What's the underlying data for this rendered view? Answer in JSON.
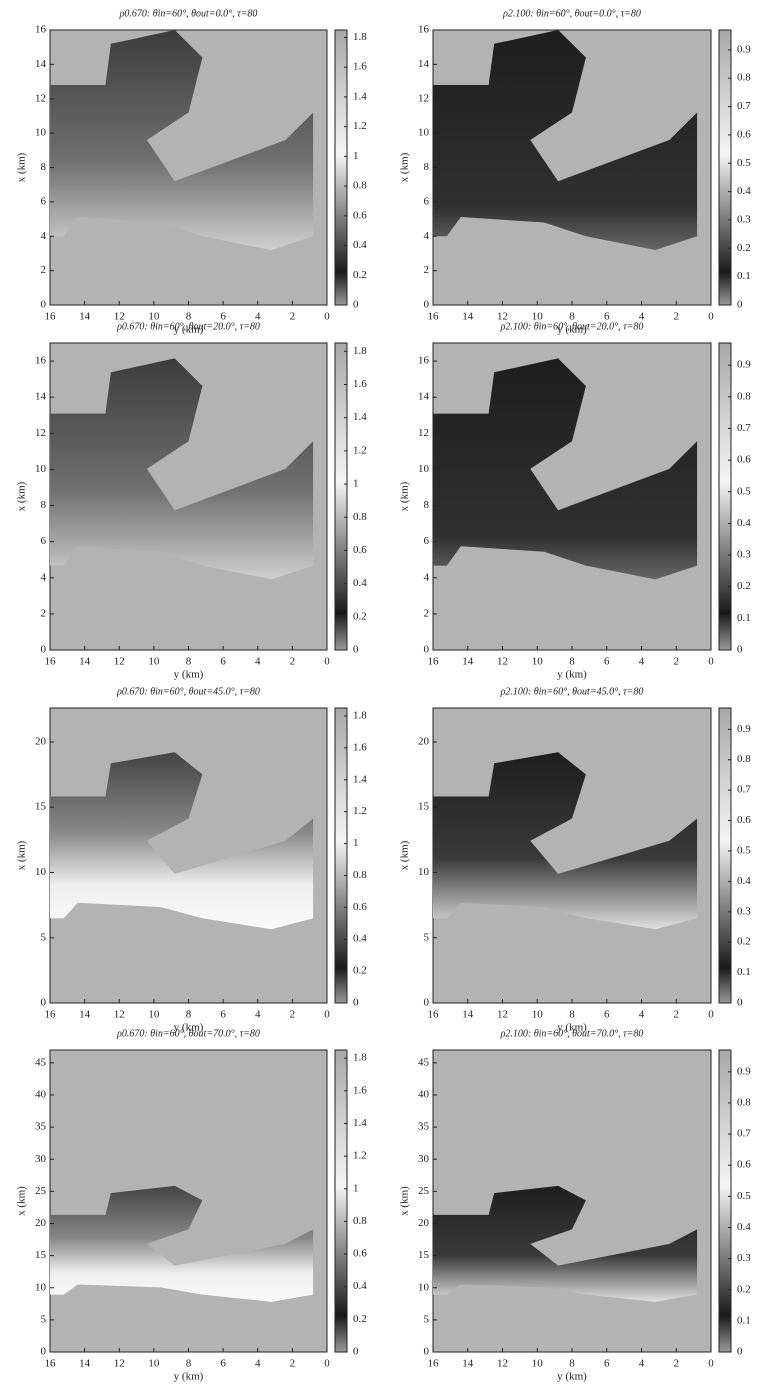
{
  "chart_data": [
    {
      "type": "heatmap",
      "title": "ρ0.670: θin=60°, θout=0.0°, τ=80",
      "xlabel": "y (km)",
      "ylabel": "x (km)",
      "xlim": [
        16,
        0
      ],
      "xticks": [
        16,
        14,
        12,
        10,
        8,
        6,
        4,
        2,
        0
      ],
      "ylim": [
        0,
        16
      ],
      "yticks": [
        0,
        2,
        4,
        6,
        8,
        10,
        12,
        14,
        16
      ],
      "clim": [
        0,
        1.85
      ],
      "cticks": [
        0,
        0.2,
        0.4,
        0.6,
        0.8,
        1,
        1.2,
        1.4,
        1.6,
        1.8
      ]
    },
    {
      "type": "heatmap",
      "title": "ρ2.100: θin=60°, θout=0.0°, τ=80",
      "xlabel": "y (km)",
      "ylabel": "x (km)",
      "xlim": [
        16,
        0
      ],
      "xticks": [
        16,
        14,
        12,
        10,
        8,
        6,
        4,
        2,
        0
      ],
      "ylim": [
        0,
        16
      ],
      "yticks": [
        0,
        2,
        4,
        6,
        8,
        10,
        12,
        14,
        16
      ],
      "clim": [
        0,
        0.97
      ],
      "cticks": [
        0,
        0.1,
        0.2,
        0.3,
        0.4,
        0.5,
        0.6,
        0.7,
        0.8,
        0.9
      ]
    },
    {
      "type": "heatmap",
      "title": "ρ0.670: θin=60°, θout=20.0°, τ=80",
      "xlabel": "y (km)",
      "ylabel": "x (km)",
      "xlim": [
        16,
        0
      ],
      "xticks": [
        16,
        14,
        12,
        10,
        8,
        6,
        4,
        2,
        0
      ],
      "ylim": [
        0,
        17
      ],
      "yticks": [
        0,
        2,
        4,
        6,
        8,
        10,
        12,
        14,
        16
      ],
      "clim": [
        0,
        1.85
      ],
      "cticks": [
        0,
        0.2,
        0.4,
        0.6,
        0.8,
        1,
        1.2,
        1.4,
        1.6,
        1.8
      ]
    },
    {
      "type": "heatmap",
      "title": "ρ2.100: θin=60°, θout=20.0°, τ=80",
      "xlabel": "y (km)",
      "ylabel": "x (km)",
      "xlim": [
        16,
        0
      ],
      "xticks": [
        16,
        14,
        12,
        10,
        8,
        6,
        4,
        2,
        0
      ],
      "ylim": [
        0,
        17
      ],
      "yticks": [
        0,
        2,
        4,
        6,
        8,
        10,
        12,
        14,
        16
      ],
      "clim": [
        0,
        0.97
      ],
      "cticks": [
        0,
        0.1,
        0.2,
        0.3,
        0.4,
        0.5,
        0.6,
        0.7,
        0.8,
        0.9
      ]
    },
    {
      "type": "heatmap",
      "title": "ρ0.670: θin=60°, θout=45.0°, τ=80",
      "xlabel": "y (km)",
      "ylabel": "x (km)",
      "xlim": [
        16,
        0
      ],
      "xticks": [
        16,
        14,
        12,
        10,
        8,
        6,
        4,
        2,
        0
      ],
      "ylim": [
        0,
        22.6
      ],
      "yticks": [
        0,
        5,
        10,
        15,
        20
      ],
      "clim": [
        0,
        1.85
      ],
      "cticks": [
        0,
        0.2,
        0.4,
        0.6,
        0.8,
        1,
        1.2,
        1.4,
        1.6,
        1.8
      ]
    },
    {
      "type": "heatmap",
      "title": "ρ2.100: θin=60°, θout=45.0°, τ=80",
      "xlabel": "y (km)",
      "ylabel": "x (km)",
      "xlim": [
        16,
        0
      ],
      "xticks": [
        16,
        14,
        12,
        10,
        8,
        6,
        4,
        2,
        0
      ],
      "ylim": [
        0,
        22.6
      ],
      "yticks": [
        0,
        5,
        10,
        15,
        20
      ],
      "clim": [
        0,
        0.97
      ],
      "cticks": [
        0,
        0.1,
        0.2,
        0.3,
        0.4,
        0.5,
        0.6,
        0.7,
        0.8,
        0.9
      ]
    },
    {
      "type": "heatmap",
      "title": "ρ0.670: θin=60°, θout=70.0°, τ=80",
      "xlabel": "y (km)",
      "ylabel": "x (km)",
      "xlim": [
        16,
        0
      ],
      "xticks": [
        16,
        14,
        12,
        10,
        8,
        6,
        4,
        2,
        0
      ],
      "ylim": [
        0,
        47
      ],
      "yticks": [
        0,
        5,
        10,
        15,
        20,
        25,
        30,
        35,
        40,
        45
      ],
      "clim": [
        0,
        1.85
      ],
      "cticks": [
        0,
        0.2,
        0.4,
        0.6,
        0.8,
        1,
        1.2,
        1.4,
        1.6,
        1.8
      ]
    },
    {
      "type": "heatmap",
      "title": "ρ2.100: θin=60°, θout=70.0°, τ=80",
      "xlabel": "y (km)",
      "ylabel": "x (km)",
      "xlim": [
        16,
        0
      ],
      "xticks": [
        16,
        14,
        12,
        10,
        8,
        6,
        4,
        2,
        0
      ],
      "ylim": [
        0,
        47
      ],
      "yticks": [
        0,
        5,
        10,
        15,
        20,
        25,
        30,
        35,
        40,
        45
      ],
      "clim": [
        0,
        0.97
      ],
      "cticks": [
        0,
        0.1,
        0.2,
        0.3,
        0.4,
        0.5,
        0.6,
        0.7,
        0.8,
        0.9
      ]
    }
  ]
}
